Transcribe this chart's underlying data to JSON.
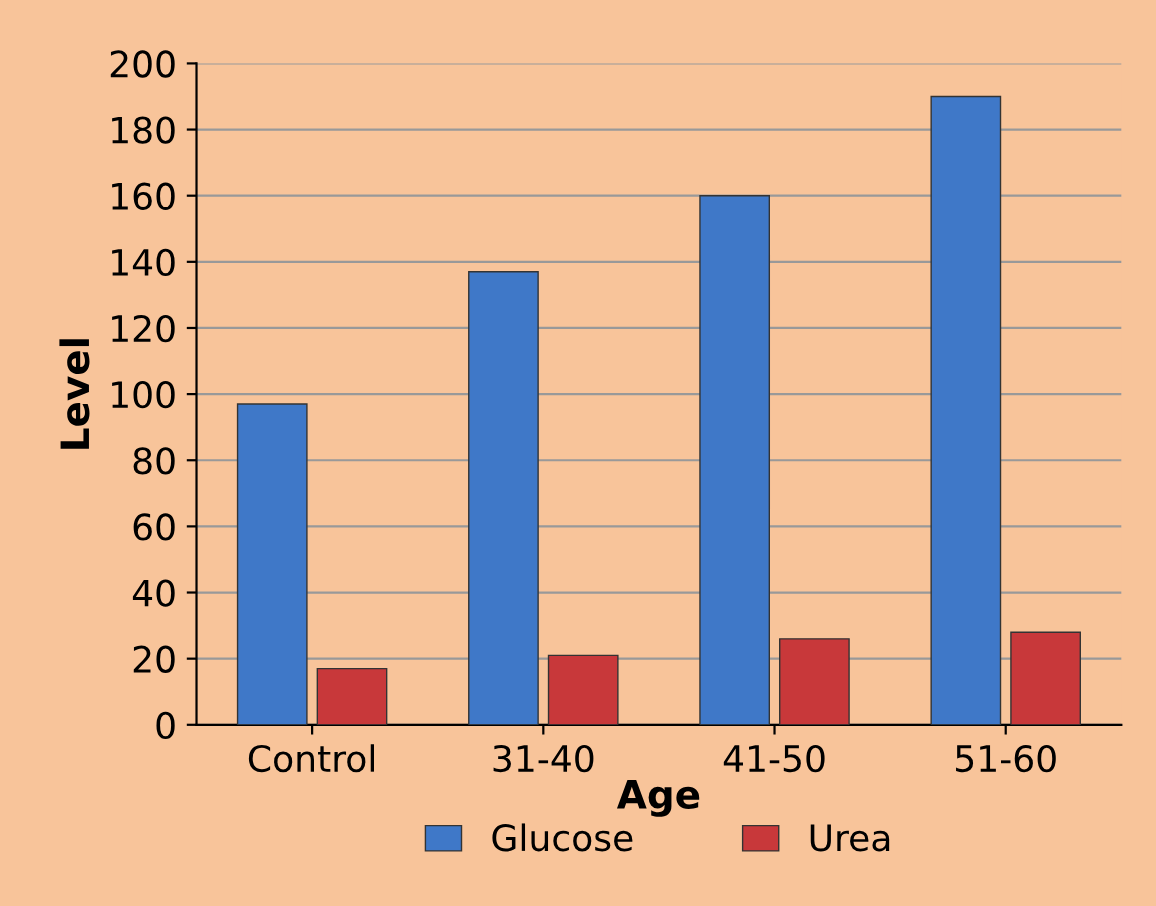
{
  "chart_data": {
    "type": "bar",
    "xlabel": "Age",
    "ylabel": "Level",
    "categories": [
      "Control",
      "31-40",
      "41-50",
      "51-60"
    ],
    "series": [
      {
        "name": "Glucose",
        "color": "#3f78c8",
        "values": [
          97,
          137,
          160,
          190
        ]
      },
      {
        "name": "Urea",
        "color": "#c8383a",
        "values": [
          17,
          21,
          26,
          28
        ]
      }
    ],
    "ylim": [
      0,
      200
    ],
    "yticks": [
      0,
      20,
      40,
      60,
      80,
      100,
      120,
      140,
      160,
      180,
      200
    ],
    "grid": "y",
    "legend": "bottom"
  }
}
